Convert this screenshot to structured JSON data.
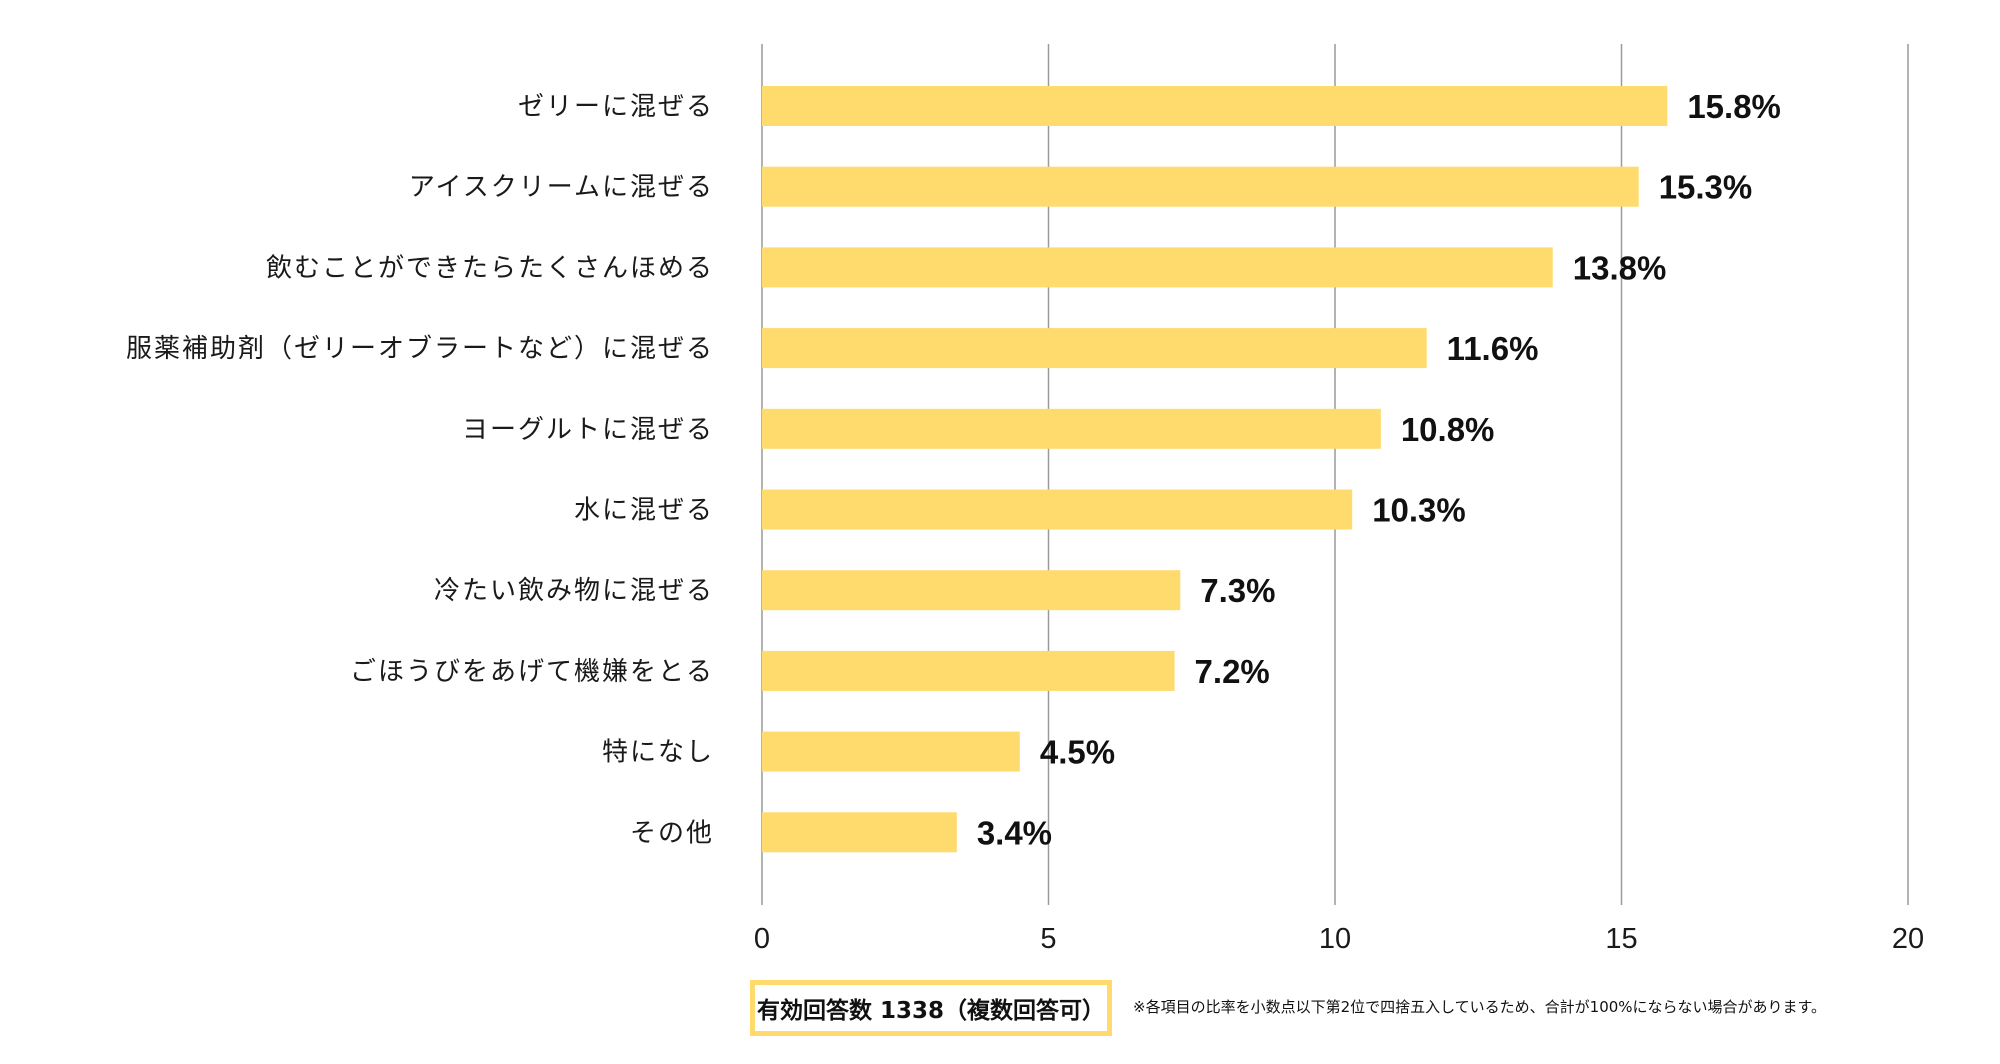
{
  "chart_data": {
    "type": "bar",
    "orientation": "horizontal",
    "categories": [
      "ゼリーに混ぜる",
      "アイスクリームに混ぜる",
      "飲むことができたらたくさんほめる",
      "服薬補助剤（ゼリーオブラートなど）に混ぜる",
      "ヨーグルトに混ぜる",
      "水に混ぜる",
      "冷たい飲み物に混ぜる",
      "ごほうびをあげて機嫌をとる",
      "特になし",
      "その他"
    ],
    "values": [
      15.8,
      15.3,
      13.8,
      11.6,
      10.8,
      10.3,
      7.3,
      7.2,
      4.5,
      3.4
    ],
    "value_labels": [
      "15.8%",
      "15.3%",
      "13.8%",
      "11.6%",
      "10.8%",
      "10.3%",
      "7.3%",
      "7.2%",
      "4.5%",
      "3.4%"
    ],
    "xlim": [
      0,
      20
    ],
    "xticks": [
      0,
      5,
      10,
      15,
      20
    ],
    "xtick_labels": [
      "0",
      "5",
      "10",
      "15",
      "20"
    ],
    "grid": true,
    "bar_color": "#FFDA6C",
    "title": "",
    "xlabel": "",
    "ylabel": ""
  },
  "footer": {
    "response_count": "有効回答数 1338（複数回答可）",
    "note": "※各項目の比率を小数点以下第2位で四捨五入しているため、合計が100%にならない場合があります。",
    "box_color": "#FFDA6C"
  }
}
